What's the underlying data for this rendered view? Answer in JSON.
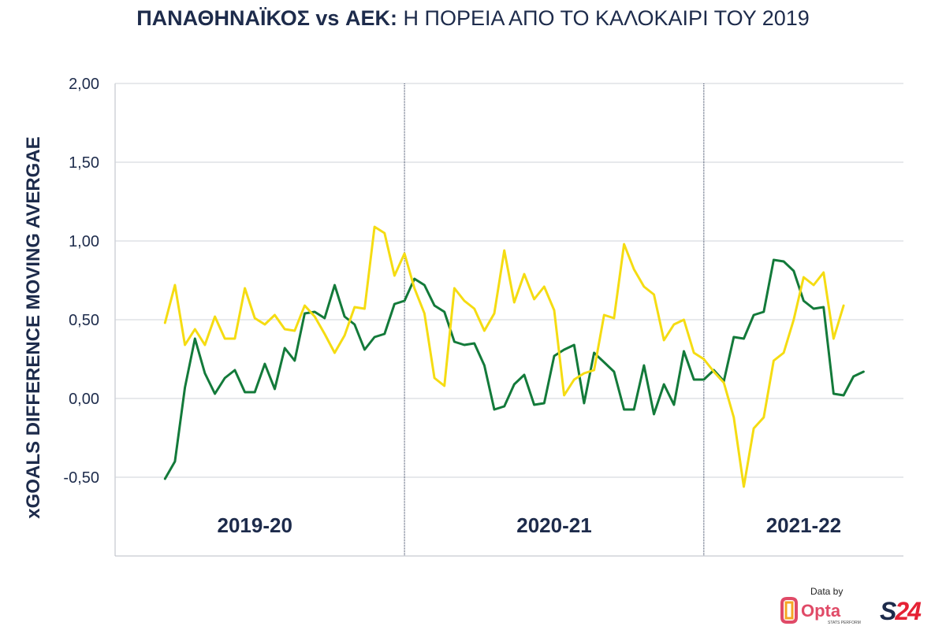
{
  "header": {
    "title_bold": "ΠΑΝΑΘΗΝΑΪΚΟΣ vs ΑΕΚ:",
    "title_light": "Η ΠΟΡΕΙΑ ΑΠΟ ΤΟ ΚΑΛΟΚΑΙΡΙ ΤΟΥ 2019"
  },
  "colors": {
    "panathinaikos": "#137a3a",
    "aek": "#f5dc12",
    "text": "#1d2b4b"
  },
  "branding": {
    "credit": "Data by",
    "opta": "Opta",
    "opta_sub": "STATS PERFORM",
    "s24_left": "S",
    "s24_right": "24"
  },
  "chart_data": {
    "type": "line",
    "ylabel": "xGOALS DIFFERENCE MOVING AVERGAE",
    "ylim": [
      -1.0,
      2.0
    ],
    "yticks": [
      {
        "value": 2.0,
        "label": "2,00"
      },
      {
        "value": 1.5,
        "label": "1,50"
      },
      {
        "value": 1.0,
        "label": "1,00"
      },
      {
        "value": 0.5,
        "label": "0,50"
      },
      {
        "value": 0.0,
        "label": "0,00"
      },
      {
        "value": -0.5,
        "label": "-0,50"
      }
    ],
    "xlim": [
      -5,
      74
    ],
    "grid": true,
    "season_dividers": [
      24,
      54
    ],
    "seasons": [
      {
        "label": "2019-20",
        "x": 9
      },
      {
        "label": "2020-21",
        "x": 39
      },
      {
        "label": "2021-22",
        "x": 64
      }
    ],
    "series": [
      {
        "color": "#137a3a",
        "x": [
          0,
          1,
          2,
          3,
          4,
          5,
          6,
          7,
          8,
          9,
          10,
          11,
          12,
          13,
          14,
          15,
          16,
          17,
          18,
          19,
          20,
          21,
          22,
          23,
          24,
          25,
          26,
          27,
          28,
          29,
          30,
          31,
          32,
          33,
          34,
          35,
          36,
          37,
          38,
          39,
          40,
          41,
          42,
          43,
          44,
          45,
          46,
          47,
          48,
          49,
          50,
          51,
          52,
          53,
          54,
          55,
          56,
          57,
          58,
          59,
          60,
          61,
          62,
          63,
          64,
          65,
          66,
          67,
          68,
          69,
          70
        ],
        "values": [
          -0.51,
          -0.4,
          0.07,
          0.38,
          0.16,
          0.03,
          0.13,
          0.18,
          0.04,
          0.04,
          0.22,
          0.06,
          0.32,
          0.24,
          0.54,
          0.55,
          0.51,
          0.72,
          0.52,
          0.47,
          0.31,
          0.39,
          0.41,
          0.6,
          0.62,
          0.76,
          0.72,
          0.59,
          0.55,
          0.36,
          0.34,
          0.35,
          0.21,
          -0.07,
          -0.05,
          0.09,
          0.15,
          -0.04,
          -0.03,
          0.27,
          0.31,
          0.34,
          -0.03,
          0.29,
          0.23,
          0.17,
          -0.07,
          -0.07,
          0.21,
          -0.1,
          0.09,
          -0.04,
          0.3,
          0.12,
          0.12,
          0.18,
          0.11,
          0.39,
          0.38,
          0.53,
          0.55,
          0.88,
          0.87,
          0.81,
          0.62,
          0.57,
          0.58,
          0.03,
          0.02,
          0.14,
          0.17
        ]
      },
      {
        "color": "#f5dc12",
        "x": [
          0,
          1,
          2,
          3,
          4,
          5,
          6,
          7,
          8,
          9,
          10,
          11,
          12,
          13,
          14,
          15,
          16,
          17,
          18,
          19,
          20,
          21,
          22,
          23,
          24,
          25,
          26,
          27,
          28,
          29,
          30,
          31,
          32,
          33,
          34,
          35,
          36,
          37,
          38,
          39,
          40,
          41,
          42,
          43,
          44,
          45,
          46,
          47,
          48,
          49,
          50,
          51,
          52,
          53,
          54,
          55,
          56,
          57,
          58,
          59,
          60,
          61,
          62,
          63,
          64,
          65,
          66,
          67,
          68
        ],
        "values": [
          0.48,
          0.72,
          0.34,
          0.44,
          0.34,
          0.52,
          0.38,
          0.38,
          0.7,
          0.51,
          0.47,
          0.53,
          0.44,
          0.43,
          0.59,
          0.52,
          0.41,
          0.29,
          0.4,
          0.58,
          0.57,
          1.09,
          1.05,
          0.78,
          0.92,
          0.7,
          0.54,
          0.13,
          0.08,
          0.7,
          0.62,
          0.57,
          0.43,
          0.54,
          0.94,
          0.61,
          0.79,
          0.63,
          0.71,
          0.56,
          0.02,
          0.12,
          0.16,
          0.18,
          0.53,
          0.51,
          0.98,
          0.82,
          0.71,
          0.66,
          0.37,
          0.47,
          0.5,
          0.29,
          0.25,
          0.17,
          0.1,
          -0.12,
          -0.56,
          -0.19,
          -0.12,
          0.24,
          0.29,
          0.5,
          0.77,
          0.72,
          0.8,
          0.38,
          0.59
        ]
      }
    ]
  }
}
